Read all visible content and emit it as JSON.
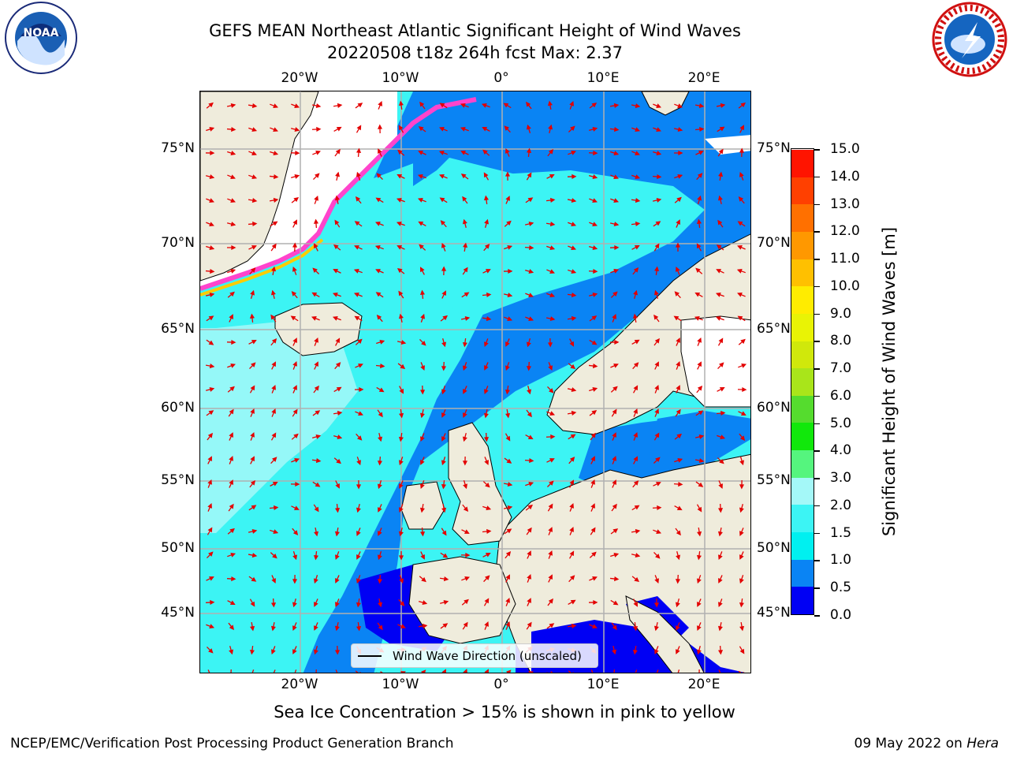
{
  "header": {
    "title_line1": "GEFS MEAN Northeast Atlantic Significant Height of Wind Waves",
    "title_line2": "20220508 t18z 264h fcst   Max: 2.37"
  },
  "logos": {
    "left": "NOAA",
    "right": "NATIONAL WEATHER SERVICE"
  },
  "map": {
    "lon_ticks": [
      "20°W",
      "10°W",
      "0°",
      "10°E",
      "20°E"
    ],
    "lat_ticks": [
      "75°N",
      "70°N",
      "65°N",
      "60°N",
      "55°N",
      "50°N",
      "45°N"
    ],
    "legend_label": "Wind Wave Direction (unscaled)",
    "colors": {
      "ocean_light": "#3cf4f4",
      "ocean_pale": "#a4f8f8",
      "ocean_med": "#0a84f4",
      "ocean_deep": "#0000f4",
      "land": "#efecdc",
      "ice_white": "#ffffff",
      "arrow": "#e30000"
    }
  },
  "colorbar": {
    "label": "Significant Height of Wind Waves [m]",
    "ticks": [
      "0.0",
      "0.5",
      "1.0",
      "1.5",
      "2.0",
      "3.0",
      "4.0",
      "5.0",
      "6.0",
      "7.0",
      "8.0",
      "9.0",
      "10.0",
      "11.0",
      "12.0",
      "13.0",
      "14.0",
      "15.0"
    ],
    "colors": [
      "#0000f4",
      "#0a84f4",
      "#00f0f0",
      "#3cf4f4",
      "#a4f8f8",
      "#55f57e",
      "#11e80b",
      "#55dc2e",
      "#a9e51a",
      "#d0e80b",
      "#e9f305",
      "#ffec00",
      "#ffc000",
      "#ff9800",
      "#ff7000",
      "#ff4000",
      "#ff1400"
    ]
  },
  "note": "Sea Ice Concentration > 15% is shown in pink to yellow",
  "footer": {
    "left": "NCEP/EMC/Verification Post Processing Product Generation Branch",
    "date": "09 May 2022 on",
    "machine": "Hera"
  }
}
